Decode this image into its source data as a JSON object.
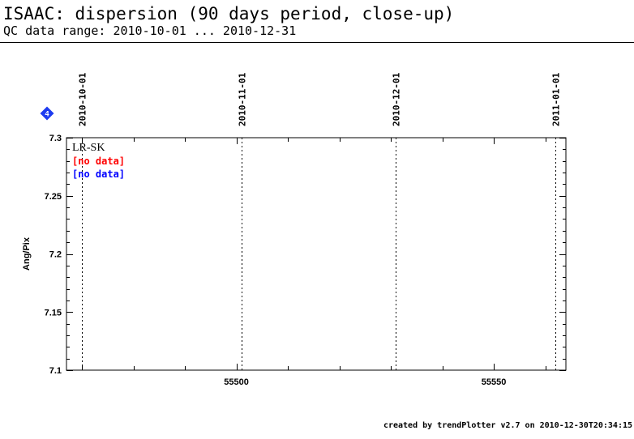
{
  "header": {
    "title": "ISAAC: dispersion (90 days period, close-up)",
    "subtitle": "QC data range: 2010-10-01 ... 2010-12-31"
  },
  "footer": {
    "text": "created by trendPlotter v2.7 on 2010-12-30T20:34:15"
  },
  "badge": {
    "text": "4",
    "color": "#1e3cf0"
  },
  "colors": {
    "axis": "#000000",
    "no_data_primary": "#ff0000",
    "no_data_secondary": "#0000ff"
  },
  "chart_data": {
    "type": "scatter",
    "xlim": [
      55467,
      55564
    ],
    "ylim": [
      7.1,
      7.3
    ],
    "ylabel": "Ang/Pix",
    "x_ticks": [
      55500,
      55550
    ],
    "y_ticks": [
      7.1,
      7.15,
      7.2,
      7.25,
      7.3
    ],
    "y_tick_labels": [
      "7.1",
      "7.15",
      "7.2",
      "7.25",
      "7.3"
    ],
    "date_markers": [
      {
        "mjd": 55470,
        "label": "2010-10-01"
      },
      {
        "mjd": 55501,
        "label": "2010-11-01"
      },
      {
        "mjd": 55531,
        "label": "2010-12-01"
      },
      {
        "mjd": 55562,
        "label": "2011-01-01"
      }
    ],
    "legend": {
      "setting": "LR-SK",
      "entries": [
        {
          "text": "[no data]",
          "color": "#ff0000"
        },
        {
          "text": "[no data]",
          "color": "#0000ff"
        }
      ]
    },
    "series": []
  }
}
